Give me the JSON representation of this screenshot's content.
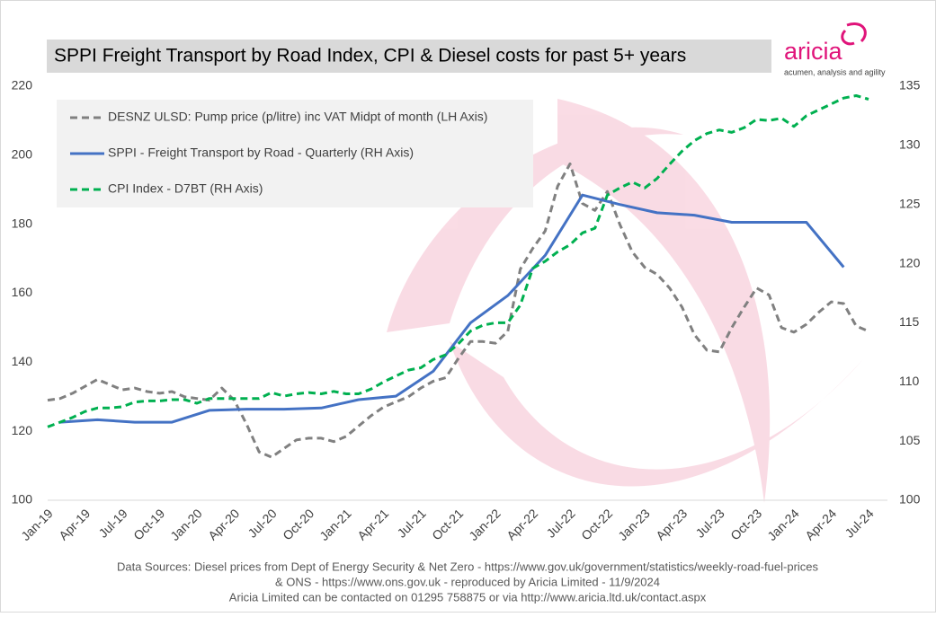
{
  "chart_data": {
    "type": "line",
    "title": "SPPI Freight Transport by Road Index, CPI & Diesel costs for past 5+ years",
    "categories": [
      "Jan-19",
      null,
      null,
      "Apr-19",
      null,
      null,
      "Jul-19",
      null,
      null,
      "Oct-19",
      null,
      null,
      "Jan-20",
      null,
      null,
      "Apr-20",
      null,
      null,
      "Jul-20",
      null,
      null,
      "Oct-20",
      null,
      null,
      "Jan-21",
      null,
      null,
      "Apr-21",
      null,
      null,
      "Jul-21",
      null,
      null,
      "Oct-21",
      null,
      null,
      "Jan-22",
      null,
      null,
      "Apr-22",
      null,
      null,
      "Jul-22",
      null,
      null,
      "Oct-22",
      null,
      null,
      "Jan-23",
      null,
      null,
      "Apr-23",
      null,
      null,
      "Jul-23",
      null,
      null,
      "Oct-23",
      null,
      null,
      "Jan-24",
      null,
      null,
      "Apr-24",
      null,
      null,
      "Jul-24"
    ],
    "ylim": [
      100,
      220
    ],
    "yticks": [
      100,
      120,
      140,
      160,
      180,
      200,
      220
    ],
    "y2lim": [
      100,
      135
    ],
    "y2ticks": [
      100,
      105,
      110,
      115,
      120,
      125,
      130,
      135
    ],
    "legend": "upper-left",
    "grid": false,
    "series": [
      {
        "name": "DESNZ ULSD: Pump price (p/litre) inc VAT Midpt of month (LH Axis)",
        "color": "#808080",
        "line_style": "dashed",
        "axis": "y",
        "values": [
          129,
          129.5,
          131,
          133,
          135,
          133.5,
          132,
          132.5,
          131.5,
          131,
          131.5,
          130,
          129.5,
          129,
          132.5,
          129,
          122,
          114,
          112.5,
          115,
          117.5,
          118,
          118,
          117,
          118.5,
          121.5,
          124.5,
          127,
          128.5,
          130,
          132.5,
          134.5,
          135.5,
          141,
          146,
          146,
          145.5,
          149,
          167,
          173,
          178,
          191,
          197.5,
          186,
          184,
          189.5,
          180,
          172,
          167.5,
          165.5,
          161.5,
          156,
          148,
          143.5,
          143,
          150,
          156,
          161.5,
          159.5,
          150,
          148.7,
          151,
          154.5,
          157.5,
          157,
          150.5,
          149
        ]
      },
      {
        "name": "SPPI - Freight Transport by Road - Quarterly (RH Axis)",
        "color": "#4472c4",
        "line_style": "solid",
        "axis": "y2",
        "connect_nulls": true,
        "values": [
          null,
          106.6,
          null,
          null,
          106.8,
          null,
          null,
          106.6,
          null,
          null,
          106.6,
          null,
          null,
          107.6,
          null,
          null,
          107.7,
          null,
          null,
          107.7,
          null,
          null,
          107.8,
          null,
          null,
          108.5,
          null,
          null,
          108.8,
          null,
          null,
          110.9,
          null,
          null,
          115.0,
          null,
          null,
          117.3,
          null,
          null,
          120.7,
          null,
          null,
          125.8,
          null,
          null,
          125.0,
          null,
          null,
          124.3,
          null,
          null,
          124.1,
          null,
          null,
          123.5,
          null,
          null,
          123.5,
          null,
          null,
          123.5,
          null,
          null,
          119.7,
          null,
          null
        ]
      },
      {
        "name": "CPI Index - D7BT (RH Axis)",
        "color": "#00b050",
        "line_style": "dashed",
        "axis": "y2",
        "values": [
          106.2,
          106.6,
          107.0,
          107.5,
          107.8,
          107.8,
          107.9,
          108.3,
          108.4,
          108.4,
          108.5,
          108.5,
          108.2,
          108.6,
          108.6,
          108.6,
          108.6,
          108.6,
          109.1,
          108.8,
          109.0,
          109.1,
          109.0,
          109.2,
          109.0,
          109.0,
          109.4,
          110.0,
          110.5,
          111.0,
          111.2,
          111.9,
          112.3,
          113.2,
          114.3,
          114.8,
          115.0,
          115.0,
          116.5,
          119.6,
          120.2,
          121.0,
          121.6,
          122.6,
          123.0,
          125.8,
          126.4,
          126.9,
          126.4,
          127.2,
          128.4,
          129.5,
          130.4,
          131.0,
          131.3,
          131.1,
          131.5,
          132.2,
          132.1,
          132.3,
          131.6,
          132.5,
          133.0,
          133.5,
          134.0,
          134.2,
          133.9
        ]
      }
    ]
  },
  "logo": {
    "name": "aricia",
    "tagline": "acumen, analysis and agility"
  },
  "footer": [
    "Data Sources: Diesel prices from Dept of Energy Security & Net Zero - https://www.gov.uk/government/statistics/weekly-road-fuel-prices",
    "& ONS - https://www.ons.gov.uk - reproduced by Aricia Limited - 11/9/2024",
    "Aricia Limited can be contacted on 01295 758875 or via http://www.aricia.ltd.uk/contact.aspx"
  ]
}
